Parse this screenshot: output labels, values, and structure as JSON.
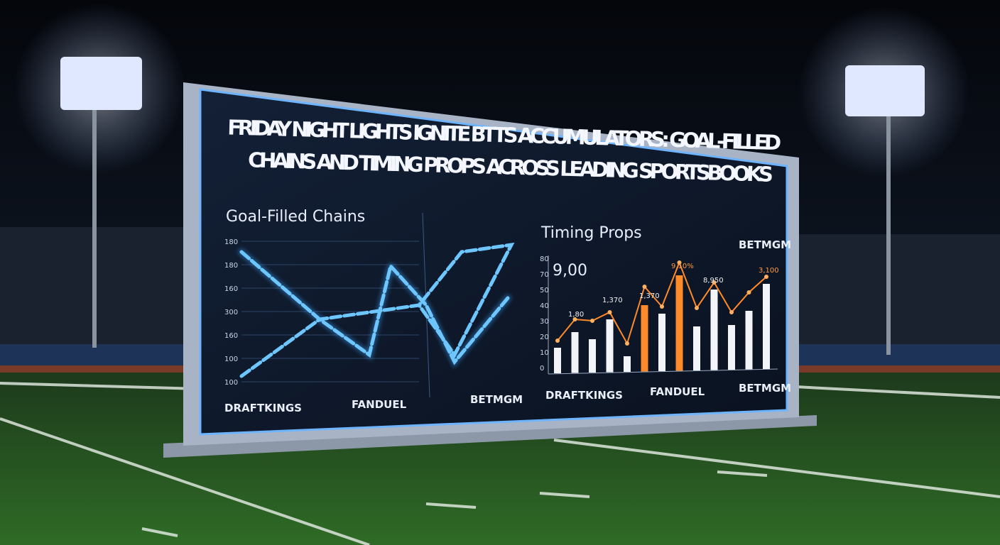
{
  "billboard": {
    "title": [
      "FRIDAY NIGHT LIGHTS IGNITE BTTS ACCUMULATORS: GOAL-FILLED",
      "CHAINS AND TIMING PROPS ACROSS LEADING SPORTSBOOKS"
    ],
    "left_panel": {
      "title": "Goal-Filled Chains",
      "axis_labels": [
        "180",
        "180",
        "160",
        "300",
        "160",
        "100",
        "100"
      ]
    },
    "right_panel": {
      "title": "Timing Props",
      "brand": "BETMGM",
      "headline_value": "9,00",
      "axis_labels": [
        "80",
        "70",
        "50",
        "40",
        "30",
        "20",
        "10",
        "0"
      ],
      "data_labels": [
        "1,80",
        "1,370",
        "1,370",
        "9,10%",
        "8,950",
        "3,100"
      ]
    },
    "logos_left": [
      "DRAFTKINGS",
      "FANDUEL",
      "BETMGM"
    ],
    "logos_right": [
      "DRAFTKINGS",
      "FANDUEL",
      "BETMGM"
    ]
  }
}
